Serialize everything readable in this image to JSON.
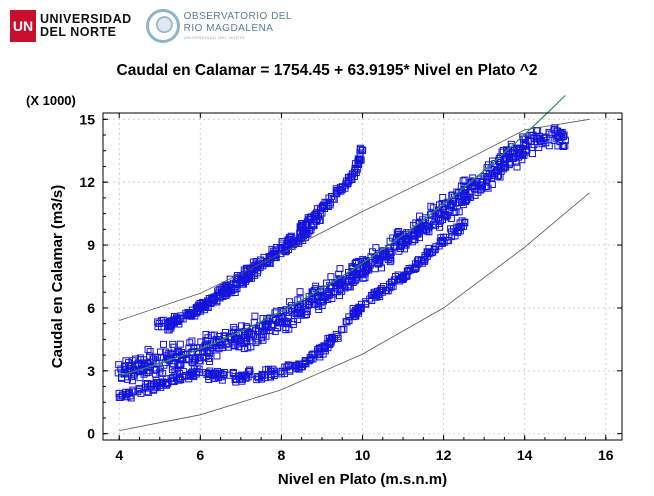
{
  "logos": {
    "university_line1": "UNIVERSIDAD",
    "university_line2": "DEL NORTE",
    "university_mark": "UN",
    "observatory_line1": "OBSERVATORIO DEL",
    "observatory_line2": "RIO MAGDALENA",
    "observatory_sub": "UNIVERSIDAD DEL NORTE"
  },
  "chart_data": {
    "type": "scatter",
    "title": "Caudal en  Calamar  = 1754.45 + 63.9195* Nivel  en Plato ^2",
    "xlabel": "Nivel  en Plato (m.s.n.m)",
    "ylabel": "Caudal en  Calamar  (m3/s)",
    "y_multiplier": "(X 1000)",
    "xlim": [
      3.6,
      16.4
    ],
    "ylim": [
      -0.3,
      15.3
    ],
    "x_ticks": [
      4,
      6,
      8,
      10,
      12,
      14,
      16
    ],
    "y_ticks": [
      0,
      3,
      6,
      9,
      12,
      15
    ],
    "grid": true,
    "marker": "open-square",
    "colors": {
      "points": "#1414dc",
      "fit": "#2e8b57",
      "bands": "#555555",
      "frame": "#000000"
    },
    "fit": {
      "intercept": 1754.45,
      "coef": 63.9195,
      "form": "y = a + b*x^2"
    },
    "band_lower": {
      "x": [
        4.0,
        6.0,
        8.0,
        10.0,
        12.0,
        14.0,
        15.6
      ],
      "y": [
        0.15,
        0.9,
        2.1,
        3.8,
        6.0,
        8.9,
        11.5
      ]
    },
    "band_upper": {
      "x": [
        4.0,
        6.0,
        8.0,
        10.0,
        12.0,
        14.0,
        15.6
      ],
      "y": [
        5.4,
        6.7,
        8.6,
        10.6,
        12.5,
        14.5,
        15.0
      ]
    },
    "clusters": [
      {
        "name": "main band",
        "points": [
          [
            4.0,
            2.9
          ],
          [
            4.5,
            3.1
          ],
          [
            5.0,
            3.4
          ],
          [
            5.5,
            3.6
          ],
          [
            6.0,
            3.9
          ],
          [
            6.5,
            4.3
          ],
          [
            7.0,
            4.6
          ],
          [
            7.5,
            5.0
          ],
          [
            8.0,
            5.5
          ],
          [
            8.5,
            6.0
          ],
          [
            9.0,
            6.6
          ],
          [
            9.5,
            7.2
          ],
          [
            10.0,
            7.9
          ],
          [
            10.5,
            8.5
          ],
          [
            11.0,
            9.2
          ],
          [
            11.5,
            9.9
          ],
          [
            12.0,
            10.6
          ],
          [
            12.5,
            11.4
          ],
          [
            13.0,
            12.1
          ],
          [
            13.5,
            13.0
          ],
          [
            14.0,
            13.8
          ],
          [
            14.5,
            14.4
          ],
          [
            15.0,
            14.1
          ]
        ],
        "spread": 0.9
      },
      {
        "name": "lower tail",
        "points": [
          [
            4.0,
            1.8
          ],
          [
            5.0,
            2.4
          ],
          [
            6.0,
            2.9
          ],
          [
            7.0,
            2.7
          ],
          [
            7.5,
            2.8
          ],
          [
            8.0,
            3.0
          ],
          [
            8.5,
            3.3
          ],
          [
            9.0,
            4.0
          ],
          [
            9.5,
            5.0
          ],
          [
            10.0,
            6.2
          ],
          [
            11.0,
            7.5
          ],
          [
            12.0,
            9.2
          ],
          [
            12.5,
            10.0
          ]
        ],
        "spread": 0.35
      },
      {
        "name": "upper branch",
        "points": [
          [
            5.2,
            5.1
          ],
          [
            5.8,
            5.8
          ],
          [
            6.5,
            6.8
          ],
          [
            7.2,
            7.8
          ],
          [
            8.0,
            8.9
          ],
          [
            8.6,
            10.0
          ],
          [
            9.2,
            11.1
          ],
          [
            9.8,
            12.4
          ],
          [
            10.0,
            13.6
          ]
        ],
        "spread": 0.3
      },
      {
        "name": "upper branch lower",
        "points": [
          [
            5.0,
            5.2
          ],
          [
            6.0,
            5.9
          ],
          [
            6.8,
            6.9
          ],
          [
            7.6,
            8.1
          ],
          [
            8.4,
            9.2
          ],
          [
            9.0,
            10.4
          ]
        ],
        "spread": 0.28
      }
    ]
  }
}
